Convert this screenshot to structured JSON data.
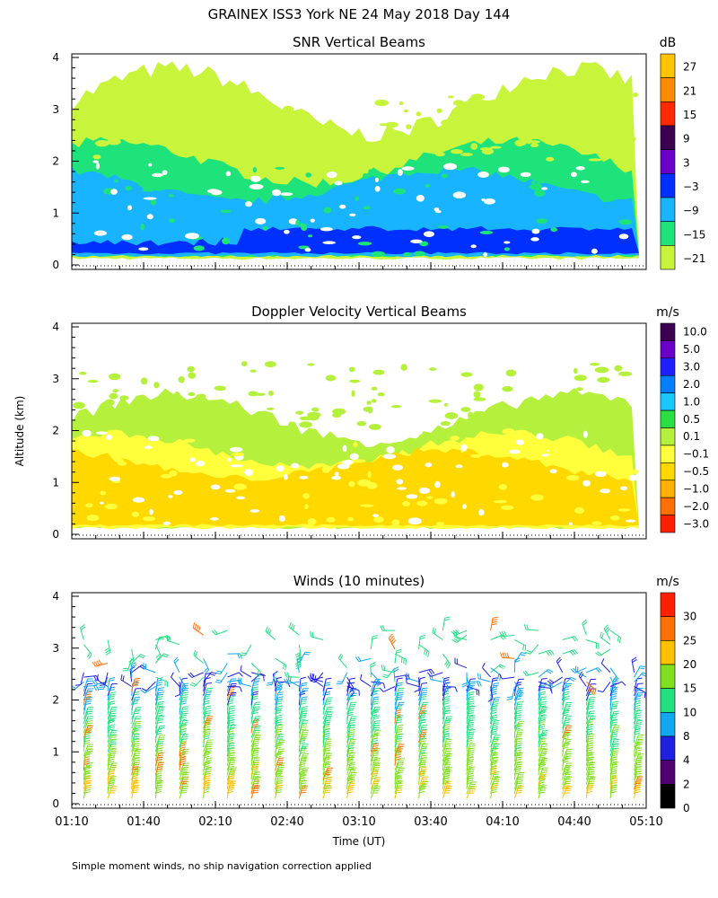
{
  "title": "GRAINEX ISS3 York NE  24 May 2018 Day 144",
  "footnote": "Simple moment winds, no ship navigation correction applied",
  "chart_data": [
    {
      "type": "heatmap",
      "title": "SNR Vertical Beams",
      "xlabel": "",
      "ylabel": "",
      "xlim": [
        "01:10",
        "05:10"
      ],
      "ylim": [
        0,
        4
      ],
      "y_ticks": [
        "0",
        "1",
        "2",
        "3",
        "4"
      ],
      "colorbar": {
        "unit": "dB",
        "labels": [
          "27",
          "21",
          "15",
          "9",
          "3",
          "−3",
          "−9",
          "−15",
          "−21"
        ],
        "colors": [
          "#ffc400",
          "#ff8a00",
          "#ff2a00",
          "#3c0050",
          "#6a00c8",
          "#0030ff",
          "#19b4ff",
          "#1ee37a",
          "#c8f53c"
        ]
      },
      "layers": [
        {
          "level": "-21",
          "color": "#c8f53c",
          "from_alt": 0.1,
          "to_alt": 3.5
        },
        {
          "level": "-15",
          "color": "#1ee37a",
          "from_alt": 0.15,
          "to_alt": 2.2
        },
        {
          "level": "-9",
          "color": "#19b4ff",
          "from_alt": 0.15,
          "to_alt": 1.7
        },
        {
          "level": "-3",
          "color": "#0030ff",
          "from_alt": 0.2,
          "to_alt": 0.7
        }
      ]
    },
    {
      "type": "heatmap",
      "title": "Doppler Velocity Vertical Beams",
      "xlabel": "",
      "ylabel": "Altitude (km)",
      "xlim": [
        "01:10",
        "05:10"
      ],
      "ylim": [
        0,
        4
      ],
      "y_ticks": [
        "0",
        "1",
        "2",
        "3",
        "4"
      ],
      "colorbar": {
        "unit": "m/s",
        "labels": [
          "10.0",
          "5.0",
          "3.0",
          "2.0",
          "1.0",
          "0.5",
          "0.1",
          "−0.1",
          "−0.5",
          "−1.0",
          "−2.0",
          "−3.0"
        ],
        "colors": [
          "#3c0050",
          "#6a00c8",
          "#2020ff",
          "#0080ff",
          "#19c8ff",
          "#28e040",
          "#b4f03c",
          "#ffff3c",
          "#ffd800",
          "#ffb000",
          "#ff7000",
          "#ff2000"
        ]
      },
      "layers": [
        {
          "level": "0.1",
          "color": "#b4f03c",
          "from_alt": 0.1,
          "to_alt": 2.5
        },
        {
          "level": "-0.1",
          "color": "#ffff3c",
          "from_alt": 0.1,
          "to_alt": 1.8
        },
        {
          "level": "-0.5",
          "color": "#ffd800",
          "from_alt": 0.15,
          "to_alt": 1.5
        }
      ]
    },
    {
      "type": "scatter",
      "title": "Winds (10 minutes)",
      "xlabel": "Time (UT)",
      "ylabel": "",
      "xlim": [
        "01:10",
        "05:10"
      ],
      "ylim": [
        0,
        4
      ],
      "x_ticks": [
        "01:10",
        "01:40",
        "02:10",
        "02:40",
        "03:10",
        "03:40",
        "04:10",
        "04:40",
        "05:10"
      ],
      "y_ticks": [
        "0",
        "1",
        "2",
        "3",
        "4"
      ],
      "profile_interval_min": 10,
      "colorbar": {
        "unit": "m/s",
        "labels": [
          "30",
          "25",
          "20",
          "15",
          "10",
          "8",
          "4",
          "2",
          "0"
        ],
        "colors": [
          "#ff2000",
          "#ff7000",
          "#ffc000",
          "#80e020",
          "#20e080",
          "#10a8f0",
          "#2020e0",
          "#500070",
          "#000000"
        ]
      },
      "speed_profile": [
        {
          "alt": 0.1,
          "speed": 20
        },
        {
          "alt": 0.8,
          "speed": 17
        },
        {
          "alt": 1.6,
          "speed": 12
        },
        {
          "alt": 2.2,
          "speed": 7
        },
        {
          "alt": 3.0,
          "speed": 12
        }
      ]
    }
  ]
}
